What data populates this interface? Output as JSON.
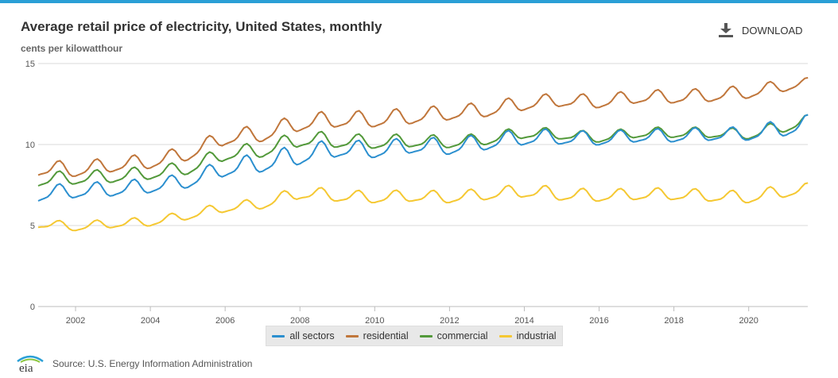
{
  "header": {
    "title": "Average retail price of electricity, United States, monthly",
    "subtitle": "cents per kilowatthour",
    "download_label": "DOWNLOAD"
  },
  "footer": {
    "logo_text": "eia",
    "source": "Source: U.S. Energy Information Administration"
  },
  "colors": {
    "accent": "#2a9fd6",
    "all_sectors": "#2b8fcf",
    "residential": "#c0763b",
    "commercial": "#52993a",
    "industrial": "#f5c832"
  },
  "chart_data": {
    "type": "line",
    "title": "Average retail price of electricity, United States, monthly",
    "ylabel": "cents per kilowatthour",
    "xlabel": "",
    "xlim": [
      2001,
      2021.58
    ],
    "ylim": [
      0,
      15
    ],
    "x_ticks": [
      "2002",
      "2004",
      "2006",
      "2008",
      "2010",
      "2012",
      "2014",
      "2016",
      "2018",
      "2020"
    ],
    "y_ticks": [
      "0",
      "5",
      "10",
      "15"
    ],
    "grid": true,
    "legend_position": "bottom",
    "series": [
      {
        "name": "all sectors",
        "color": "#2b8fcf",
        "x": [
          2001,
          2002,
          2003,
          2004,
          2005,
          2006,
          2007,
          2008,
          2009,
          2010,
          2011,
          2012,
          2013,
          2014,
          2015,
          2016,
          2017,
          2018,
          2019,
          2020,
          2021,
          2021.5
        ],
        "y": [
          6.9,
          7.1,
          7.2,
          7.4,
          7.7,
          8.5,
          8.8,
          9.3,
          9.7,
          9.6,
          9.9,
          9.8,
          10.1,
          10.4,
          10.4,
          10.3,
          10.5,
          10.5,
          10.6,
          10.6,
          11.0,
          11.2
        ],
        "amplitude": [
          0.55,
          0.5,
          0.5,
          0.5,
          0.5,
          0.6,
          0.65,
          0.7,
          0.6,
          0.55,
          0.55,
          0.55,
          0.55,
          0.55,
          0.5,
          0.45,
          0.45,
          0.45,
          0.45,
          0.45,
          0.6,
          0.6
        ]
      },
      {
        "name": "residential",
        "color": "#c0763b",
        "x": [
          2001,
          2002,
          2003,
          2004,
          2005,
          2006,
          2007,
          2008,
          2009,
          2010,
          2011,
          2012,
          2013,
          2014,
          2015,
          2016,
          2017,
          2018,
          2019,
          2020,
          2021,
          2021.5
        ],
        "y": [
          8.5,
          8.4,
          8.7,
          8.9,
          9.4,
          10.4,
          10.6,
          11.3,
          11.5,
          11.5,
          11.7,
          11.9,
          12.1,
          12.5,
          12.7,
          12.6,
          12.9,
          12.9,
          13.0,
          13.2,
          13.6,
          13.8
        ],
        "amplitude": [
          0.55,
          0.5,
          0.5,
          0.5,
          0.5,
          0.55,
          0.55,
          0.6,
          0.55,
          0.55,
          0.55,
          0.5,
          0.5,
          0.5,
          0.45,
          0.45,
          0.45,
          0.45,
          0.45,
          0.45,
          0.4,
          0.3
        ]
      },
      {
        "name": "commercial",
        "color": "#52993a",
        "x": [
          2001,
          2002,
          2003,
          2004,
          2005,
          2006,
          2007,
          2008,
          2009,
          2010,
          2011,
          2012,
          2013,
          2014,
          2015,
          2016,
          2017,
          2018,
          2019,
          2020,
          2021,
          2021.5
        ],
        "y": [
          7.8,
          7.9,
          8.0,
          8.2,
          8.5,
          9.4,
          9.6,
          10.3,
          10.2,
          10.1,
          10.2,
          10.1,
          10.3,
          10.7,
          10.6,
          10.4,
          10.7,
          10.7,
          10.7,
          10.6,
          11.1,
          11.4
        ],
        "amplitude": [
          0.5,
          0.45,
          0.45,
          0.45,
          0.45,
          0.5,
          0.5,
          0.55,
          0.5,
          0.45,
          0.45,
          0.4,
          0.4,
          0.4,
          0.35,
          0.35,
          0.35,
          0.35,
          0.35,
          0.35,
          0.4,
          0.4
        ]
      },
      {
        "name": "industrial",
        "color": "#f5c832",
        "x": [
          2001,
          2002,
          2003,
          2004,
          2005,
          2006,
          2007,
          2008,
          2009,
          2010,
          2011,
          2012,
          2013,
          2014,
          2015,
          2016,
          2017,
          2018,
          2019,
          2020,
          2021,
          2021.5
        ],
        "y": [
          5.1,
          4.9,
          5.1,
          5.2,
          5.6,
          6.1,
          6.3,
          7.0,
          6.8,
          6.7,
          6.8,
          6.7,
          6.9,
          7.1,
          6.9,
          6.8,
          6.9,
          6.9,
          6.8,
          6.7,
          7.1,
          7.2
        ],
        "amplitude": [
          0.3,
          0.3,
          0.3,
          0.3,
          0.3,
          0.35,
          0.35,
          0.45,
          0.4,
          0.4,
          0.4,
          0.4,
          0.4,
          0.45,
          0.45,
          0.4,
          0.4,
          0.4,
          0.4,
          0.4,
          0.45,
          0.4
        ]
      }
    ]
  }
}
